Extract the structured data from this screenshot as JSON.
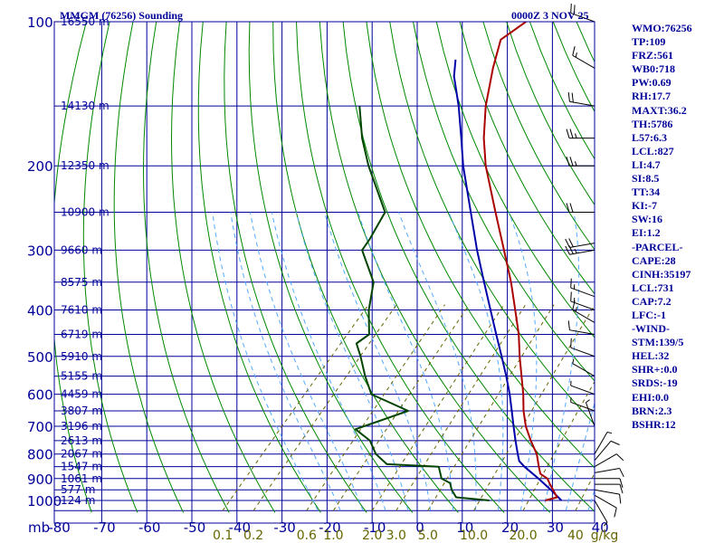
{
  "header": {
    "station": "MMGM (76256) Sounding",
    "valid_time": "0000Z  3 NOV 25"
  },
  "indices": [
    "WMO:76256",
    "TP:109",
    "FRZ:561",
    "WB0:718",
    "PW:0.69",
    "RH:17.7",
    "MAXT:36.2",
    "TH:5786",
    "L57:6.3",
    "LCL:827",
    "LI:4.7",
    "SI:8.5",
    "TT:34",
    "KI:-7",
    "SW:16",
    "EI:1.2",
    "-PARCEL-",
    "CAPE:28",
    "CINH:35197",
    "LCL:731",
    "CAP:7.2",
    "LFC:-1",
    "-WIND-",
    "STM:139/5",
    "HEL:32",
    "SHR+:0.0",
    "SRDS:-19",
    "EHI:0.0",
    "BRN:2.3",
    "BSHR:12"
  ],
  "chart_data": {
    "type": "skew-t sounding",
    "title": "MMGM (76256) Sounding",
    "pressure_unit": "mb",
    "pressure_labels": [
      "100",
      "200",
      "300",
      "400",
      "500",
      "600",
      "700",
      "800",
      "900",
      "1000"
    ],
    "pressure_ticks": [
      100,
      200,
      300,
      400,
      500,
      600,
      700,
      800,
      900,
      1000
    ],
    "temperature_labels": [
      "-80",
      "-70",
      "-60",
      "-50",
      "-40",
      "-30",
      "-20",
      "-10",
      "0",
      "10",
      "20",
      "30",
      "40"
    ],
    "temperature_ticks": [
      -80,
      -70,
      -60,
      -50,
      -40,
      -30,
      -20,
      -10,
      0,
      10,
      20,
      30,
      40
    ],
    "mixing_ratio_labels": [
      "0.1",
      "0.2",
      "0.6",
      "1.0",
      "2.0",
      "3.0",
      "5.0",
      "10.0",
      "20.0",
      "40",
      "g/kg"
    ],
    "mixing_ratio_values": [
      0.1,
      0.2,
      0.6,
      1.0,
      2.0,
      3.0,
      5.0,
      10.0,
      20.0,
      40
    ],
    "height_labels": [
      {
        "p": 100,
        "text": "16550 m"
      },
      {
        "p": 150,
        "text": "14130 m"
      },
      {
        "p": 200,
        "text": "12350 m"
      },
      {
        "p": 250,
        "text": "10900 m"
      },
      {
        "p": 300,
        "text": "9660 m"
      },
      {
        "p": 350,
        "text": "8575 m"
      },
      {
        "p": 400,
        "text": "7610 m"
      },
      {
        "p": 450,
        "text": "6719 m"
      },
      {
        "p": 500,
        "text": "5910 m"
      },
      {
        "p": 550,
        "text": "5155 m"
      },
      {
        "p": 600,
        "text": "4459 m"
      },
      {
        "p": 650,
        "text": "3807 m"
      },
      {
        "p": 700,
        "text": "3196 m"
      },
      {
        "p": 750,
        "text": "2613 m"
      },
      {
        "p": 800,
        "text": "2067 m"
      },
      {
        "p": 850,
        "text": "1547 m"
      },
      {
        "p": 900,
        "text": "1061 m"
      },
      {
        "p": 950,
        "text": "577 m"
      },
      {
        "p": 1000,
        "text": "124 m"
      }
    ],
    "temperature_profile": [
      {
        "p": 1000,
        "t": 28.4
      },
      {
        "p": 985,
        "t": 30.4
      },
      {
        "p": 950,
        "t": 28.0
      },
      {
        "p": 925,
        "t": 26.2
      },
      {
        "p": 900,
        "t": 24.5
      },
      {
        "p": 880,
        "t": 22.0
      },
      {
        "p": 850,
        "t": 20.2
      },
      {
        "p": 800,
        "t": 17.2
      },
      {
        "p": 750,
        "t": 13.2
      },
      {
        "p": 700,
        "t": 9.2
      },
      {
        "p": 650,
        "t": 5.6
      },
      {
        "p": 600,
        "t": 2.2
      },
      {
        "p": 550,
        "t": -1.8
      },
      {
        "p": 500,
        "t": -6.2
      },
      {
        "p": 450,
        "t": -10.8
      },
      {
        "p": 400,
        "t": -16.5
      },
      {
        "p": 350,
        "t": -23.0
      },
      {
        "p": 300,
        "t": -31.0
      },
      {
        "p": 250,
        "t": -40.5
      },
      {
        "p": 200,
        "t": -52.0
      },
      {
        "p": 175,
        "t": -58.0
      },
      {
        "p": 150,
        "t": -64.0
      },
      {
        "p": 125,
        "t": -70.0
      },
      {
        "p": 109,
        "t": -74.0
      },
      {
        "p": 100,
        "t": -72.0
      }
    ],
    "dewpoint_profile": [
      {
        "p": 1000,
        "t": 16.0
      },
      {
        "p": 985,
        "t": 8.0
      },
      {
        "p": 950,
        "t": 5.5
      },
      {
        "p": 920,
        "t": 3.8
      },
      {
        "p": 900,
        "t": 1.0
      },
      {
        "p": 850,
        "t": -2.0
      },
      {
        "p": 840,
        "t": -14.0
      },
      {
        "p": 800,
        "t": -18.5
      },
      {
        "p": 750,
        "t": -22.5
      },
      {
        "p": 710,
        "t": -28.0
      },
      {
        "p": 650,
        "t": -20.0
      },
      {
        "p": 600,
        "t": -31.5
      },
      {
        "p": 550,
        "t": -36.5
      },
      {
        "p": 500,
        "t": -41.5
      },
      {
        "p": 470,
        "t": -45.0
      },
      {
        "p": 450,
        "t": -44.0
      },
      {
        "p": 400,
        "t": -49.0
      },
      {
        "p": 350,
        "t": -53.5
      },
      {
        "p": 300,
        "t": -62.5
      },
      {
        "p": 285,
        "t": -63.0
      },
      {
        "p": 250,
        "t": -65.0
      },
      {
        "p": 200,
        "t": -78.0
      },
      {
        "p": 175,
        "t": -85.0
      },
      {
        "p": 150,
        "t": -92.0
      }
    ],
    "parcel_path": [
      {
        "p": 1000,
        "t": 32.0
      },
      {
        "p": 950,
        "t": 27.5
      },
      {
        "p": 900,
        "t": 22.5
      },
      {
        "p": 850,
        "t": 17.0
      },
      {
        "p": 827,
        "t": 14.7
      },
      {
        "p": 800,
        "t": 13.0
      },
      {
        "p": 750,
        "t": 9.8
      },
      {
        "p": 700,
        "t": 6.5
      },
      {
        "p": 650,
        "t": 3.0
      },
      {
        "p": 600,
        "t": -0.8
      },
      {
        "p": 550,
        "t": -5.2
      },
      {
        "p": 500,
        "t": -10.2
      },
      {
        "p": 450,
        "t": -15.8
      },
      {
        "p": 400,
        "t": -22.0
      },
      {
        "p": 350,
        "t": -29.0
      },
      {
        "p": 300,
        "t": -37.0
      },
      {
        "p": 250,
        "t": -46.0
      },
      {
        "p": 200,
        "t": -57.0
      },
      {
        "p": 175,
        "t": -63.0
      },
      {
        "p": 150,
        "t": -70.0
      },
      {
        "p": 130,
        "t": -77.0
      },
      {
        "p": 120,
        "t": -80.0
      }
    ],
    "wind_profile": [
      {
        "p": 1000,
        "dir": 150,
        "spd": 5
      },
      {
        "p": 975,
        "dir": 120,
        "spd": 10
      },
      {
        "p": 950,
        "dir": 100,
        "spd": 10
      },
      {
        "p": 925,
        "dir": 90,
        "spd": 10
      },
      {
        "p": 900,
        "dir": 90,
        "spd": 10
      },
      {
        "p": 875,
        "dir": 80,
        "spd": 10
      },
      {
        "p": 850,
        "dir": 60,
        "spd": 10
      },
      {
        "p": 825,
        "dir": 40,
        "spd": 10
      },
      {
        "p": 800,
        "dir": 30,
        "spd": 5
      },
      {
        "p": 700,
        "dir": 340,
        "spd": 5
      },
      {
        "p": 650,
        "dir": 290,
        "spd": 5
      },
      {
        "p": 600,
        "dir": 290,
        "spd": 5
      },
      {
        "p": 550,
        "dir": 300,
        "spd": 5
      },
      {
        "p": 500,
        "dir": 290,
        "spd": 10
      },
      {
        "p": 450,
        "dir": 280,
        "spd": 10
      },
      {
        "p": 425,
        "dir": 300,
        "spd": 15
      },
      {
        "p": 400,
        "dir": 290,
        "spd": 15
      },
      {
        "p": 375,
        "dir": 290,
        "spd": 15
      },
      {
        "p": 300,
        "dir": 260,
        "spd": 25
      },
      {
        "p": 290,
        "dir": 260,
        "spd": 20
      },
      {
        "p": 250,
        "dir": 270,
        "spd": 20
      },
      {
        "p": 200,
        "dir": 270,
        "spd": 25
      },
      {
        "p": 175,
        "dir": 270,
        "spd": 25
      },
      {
        "p": 150,
        "dir": 280,
        "spd": 20
      },
      {
        "p": 125,
        "dir": 300,
        "spd": 15
      },
      {
        "p": 100,
        "dir": 290,
        "spd": 20
      }
    ],
    "colors": {
      "frame": "#000099",
      "temperature": "#aa0000",
      "dewpoint": "#004400",
      "parcel": "#0000aa",
      "dry_adiabat": "#008800",
      "moist_adiabat": "#55aaff",
      "mixing_ratio": "#666600",
      "labels": "#000099",
      "mixing_labels": "#666600"
    }
  }
}
